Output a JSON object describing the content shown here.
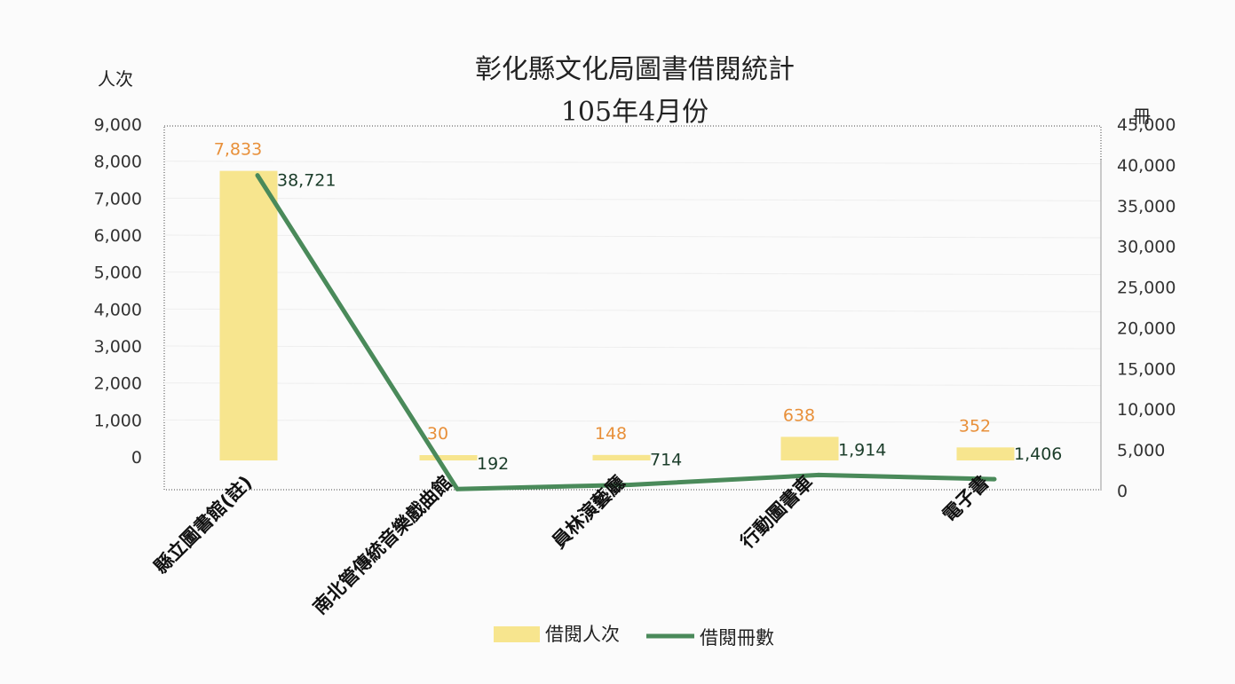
{
  "chart_data": {
    "type": "bar",
    "title": "彰化縣文化局圖書借閱統計",
    "subtitle": "105年4月份",
    "ylabel": "人次",
    "y2label": "冊",
    "categories": [
      "縣立圖書館(註)",
      "南北管傳統音樂戲曲館",
      "員林演藝廳",
      "行動圖書車",
      "電子書"
    ],
    "ylim": [
      0,
      9000
    ],
    "y2lim": [
      0,
      45000
    ],
    "yticks": [
      "9,000",
      "8,000",
      "7,000",
      "6,000",
      "5,000",
      "4,000",
      "3,000",
      "2,000",
      "1,000",
      "0"
    ],
    "y2ticks": [
      "45,000",
      "40,000",
      "35,000",
      "30,000",
      "25,000",
      "20,000",
      "15,000",
      "10,000",
      "5,000",
      "0"
    ],
    "grid": true,
    "legend_position": "bottom",
    "series": [
      {
        "name": "借閱人次",
        "type": "bar",
        "axis": "left",
        "color": "#f7e58e",
        "values": [
          7833,
          30,
          148,
          638,
          352
        ],
        "labels": [
          "7,833",
          "30",
          "148",
          "638",
          "352"
        ]
      },
      {
        "name": "借閱冊數",
        "type": "line",
        "axis": "right",
        "color": "#4a8a5a",
        "values": [
          38721,
          192,
          714,
          1914,
          1406
        ],
        "labels": [
          "38,721",
          "192",
          "714",
          "1,914",
          "1,406"
        ]
      }
    ]
  }
}
